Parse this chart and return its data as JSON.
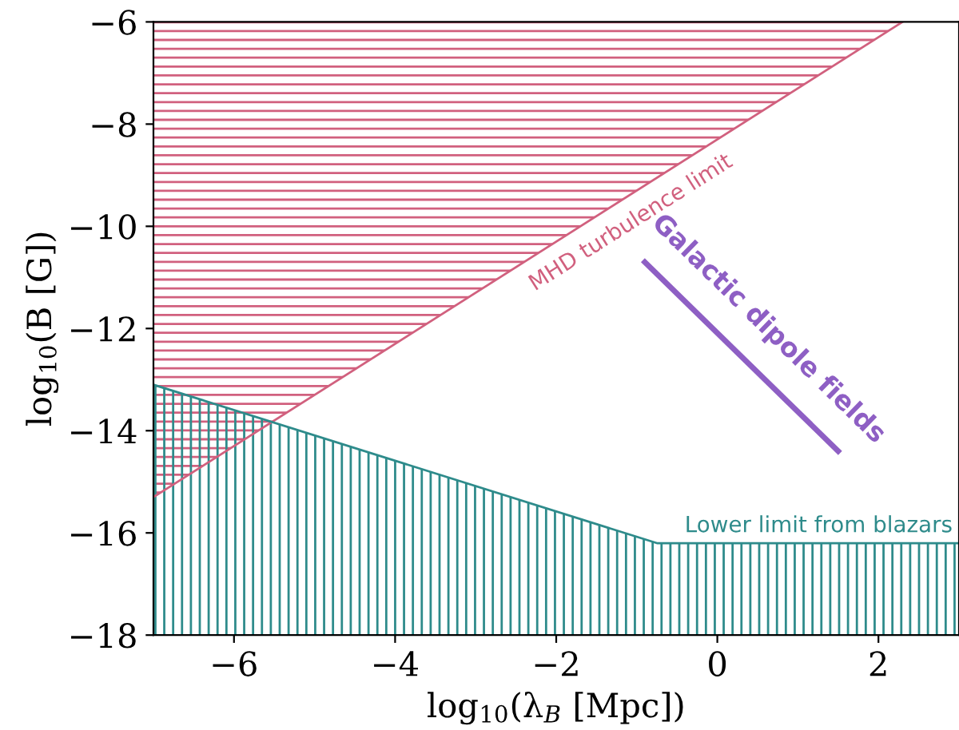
{
  "chart_data": {
    "type": "line",
    "xlabel": "log$_{10}$(λ$_{B}$ [Mpc])",
    "ylabel": "log$_{10}$(B [G])",
    "xlim": [
      -7,
      3
    ],
    "ylim": [
      -18,
      -6
    ],
    "xticks": [
      {
        "value": -6,
        "label": "−6"
      },
      {
        "value": -4,
        "label": "−4"
      },
      {
        "value": -2,
        "label": "−2"
      },
      0,
      2
    ],
    "yticks": [
      {
        "value": -18,
        "label": "−18"
      },
      {
        "value": -16,
        "label": "−16"
      },
      {
        "value": -14,
        "label": "−14"
      },
      {
        "value": -12,
        "label": "−12"
      },
      {
        "value": -10,
        "label": "−10"
      },
      {
        "value": -8,
        "label": "−8"
      },
      {
        "value": -6,
        "label": "−6"
      }
    ],
    "series": [
      {
        "name": "MHD turbulence limit",
        "color": "#d1607e",
        "x": [
          -7,
          2.3
        ],
        "values": [
          -15.3,
          -6
        ],
        "lower": [
          -15.3,
          -6
        ],
        "upper": [
          -6,
          -6
        ]
      },
      {
        "name": "Lower limit from blazars",
        "color": "#2e8b8b",
        "x": [
          -7,
          -0.75,
          3
        ],
        "values": [
          -13.1,
          -16.2,
          -16.2
        ],
        "lower": [
          -18,
          -18,
          -18
        ],
        "upper": [
          -13.1,
          -16.2,
          -16.2
        ]
      },
      {
        "name": "Galactic dipole fields",
        "color": "#8e5fc4",
        "x": [
          -0.9,
          1.5
        ],
        "values": [
          -10.7,
          -14.4
        ]
      }
    ]
  }
}
